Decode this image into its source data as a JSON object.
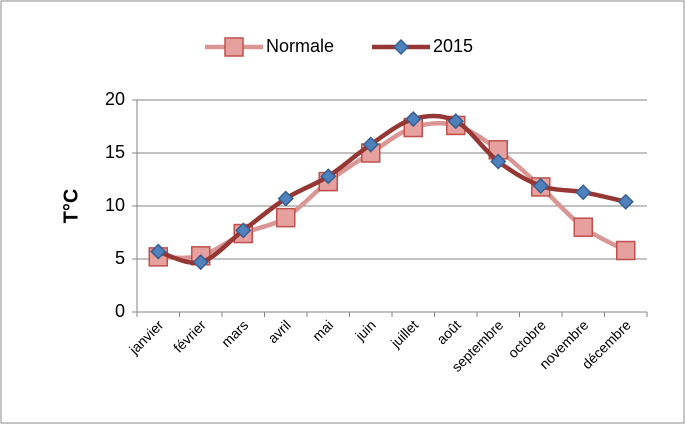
{
  "chart_data": {
    "type": "line",
    "y_label": "T°C",
    "categories": [
      "janvier",
      "février",
      "mars",
      "avril",
      "mai",
      "juin",
      "juillet",
      "août",
      "septembre",
      "octobre",
      "novembre",
      "décembre"
    ],
    "series": [
      {
        "name": "Normale",
        "color": "#d99694",
        "marker_color": "#e6a09e",
        "marker_edge": "#c0504d",
        "marker": "square",
        "values": [
          5.2,
          5.3,
          7.4,
          8.9,
          12.3,
          15.0,
          17.4,
          17.6,
          15.3,
          11.8,
          8.0,
          5.8
        ]
      },
      {
        "name": "2015",
        "color": "#953735",
        "marker_color": "#4f81bd",
        "marker_edge": "#3a5f8f",
        "marker": "diamond",
        "values": [
          5.7,
          4.7,
          7.7,
          10.7,
          12.8,
          15.8,
          18.2,
          18.0,
          14.2,
          11.9,
          11.3,
          10.4
        ]
      }
    ],
    "ylim": [
      0,
      20
    ],
    "yticks": [
      0,
      5,
      10,
      15,
      20
    ],
    "grid": true,
    "legend": "top",
    "smooth": true
  }
}
